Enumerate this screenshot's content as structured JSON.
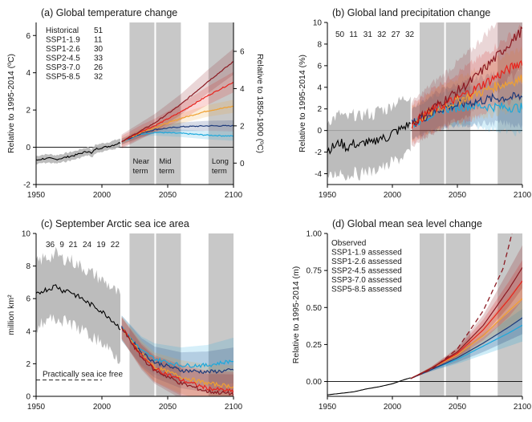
{
  "colors": {
    "historical": "#000000",
    "ssp119": "#1ba8dc",
    "ssp126": "#1d3a7a",
    "ssp245": "#f0a030",
    "ssp370": "#e8221c",
    "ssp585": "#8b1a22",
    "hist_band": "#b0b0b0",
    "period_band": "#c8c8c8"
  },
  "chart_data": [
    {
      "id": "a",
      "type": "line",
      "title": "(a) Global temperature change",
      "ylabel": "Relative to 1995-2014 (ºC)",
      "ylabel_right": "Relative to 1850-1900 (ºC)",
      "xlim": [
        1950,
        2100
      ],
      "ylim": [
        -2,
        6.7
      ],
      "xticks": [
        "1950",
        "2000",
        "2050",
        "2100"
      ],
      "yticks": [
        "-2",
        "0",
        "2",
        "4",
        "6"
      ],
      "yticks_right": [
        "0",
        "2",
        "4",
        "6"
      ],
      "right_offset": 0.85,
      "periods": [
        [
          2021,
          2040
        ],
        [
          2041,
          2060
        ],
        [
          2081,
          2100
        ]
      ],
      "period_labels": [
        [
          "Near",
          "term"
        ],
        [
          "Mid",
          "term"
        ],
        [
          "Long",
          "term"
        ]
      ],
      "zero_line": 0,
      "legend": [
        {
          "name": "Historical",
          "n": "51",
          "key": "historical"
        },
        {
          "name": "SSP1-1.9",
          "n": "11",
          "key": "ssp119"
        },
        {
          "name": "SSP1-2.6",
          "n": "30",
          "key": "ssp126"
        },
        {
          "name": "SSP2-4.5",
          "n": "33",
          "key": "ssp245"
        },
        {
          "name": "SSP3-7.0",
          "n": "26",
          "key": "ssp370"
        },
        {
          "name": "SSP5-8.5",
          "n": "32",
          "key": "ssp585"
        }
      ],
      "historical": {
        "x": [
          1950,
          1955,
          1960,
          1965,
          1970,
          1975,
          1980,
          1985,
          1990,
          1992,
          1995,
          2000,
          2005,
          2010,
          2014
        ],
        "y": [
          -0.7,
          -0.62,
          -0.6,
          -0.65,
          -0.58,
          -0.5,
          -0.42,
          -0.3,
          -0.2,
          -0.35,
          -0.1,
          -0.02,
          0.05,
          0.15,
          0.25
        ],
        "band": 0.22
      },
      "series": [
        {
          "key": "ssp119",
          "x": [
            2015,
            2030,
            2040,
            2060,
            2080,
            2100
          ],
          "y": [
            0.3,
            0.7,
            0.8,
            0.75,
            0.65,
            0.6
          ],
          "band": 0.25
        },
        {
          "key": "ssp126",
          "x": [
            2015,
            2030,
            2040,
            2060,
            2080,
            2100
          ],
          "y": [
            0.3,
            0.75,
            0.95,
            1.1,
            1.15,
            1.15
          ],
          "band": 0.3
        },
        {
          "key": "ssp245",
          "x": [
            2015,
            2030,
            2040,
            2060,
            2080,
            2100
          ],
          "y": [
            0.3,
            0.8,
            1.05,
            1.55,
            1.95,
            2.2
          ],
          "band": 0.35
        },
        {
          "key": "ssp370",
          "x": [
            2015,
            2030,
            2040,
            2060,
            2080,
            2100
          ],
          "y": [
            0.3,
            0.85,
            1.15,
            1.9,
            2.75,
            3.5
          ],
          "band": 0.55
        },
        {
          "key": "ssp585",
          "x": [
            2015,
            2030,
            2040,
            2060,
            2080,
            2100
          ],
          "y": [
            0.3,
            0.9,
            1.3,
            2.3,
            3.5,
            4.6
          ],
          "band": 0.7
        }
      ]
    },
    {
      "id": "b",
      "type": "line",
      "title": "(b) Global land precipitation change",
      "ylabel": "Relative to 1995-2014 (%)",
      "xlim": [
        1950,
        2100
      ],
      "ylim": [
        -5,
        10
      ],
      "xticks": [
        "1950",
        "2000",
        "2050",
        "2100"
      ],
      "yticks": [
        "-4",
        "-2",
        "0",
        "2",
        "4",
        "6",
        "8",
        "10"
      ],
      "periods": [
        [
          2021,
          2040
        ],
        [
          2041,
          2060
        ],
        [
          2081,
          2100
        ]
      ],
      "zero_line": 0,
      "counts": [
        {
          "n": "50",
          "key": "historical"
        },
        {
          "n": "11",
          "key": "ssp119"
        },
        {
          "n": "31",
          "key": "ssp126"
        },
        {
          "n": "32",
          "key": "ssp245"
        },
        {
          "n": "27",
          "key": "ssp370"
        },
        {
          "n": "32",
          "key": "ssp585"
        }
      ],
      "historical": {
        "x": [
          1950,
          1955,
          1960,
          1965,
          1970,
          1975,
          1980,
          1985,
          1990,
          1995,
          2000,
          2005,
          2010,
          2014
        ],
        "y": [
          -1.8,
          -1.5,
          -1.1,
          -1.6,
          -1.2,
          -1.4,
          -1.0,
          -1.3,
          -0.6,
          -0.8,
          -0.2,
          0.0,
          0.4,
          0.6
        ],
        "band": 2.6
      },
      "series": [
        {
          "key": "ssp119",
          "x": [
            2015,
            2030,
            2040,
            2060,
            2080,
            2100
          ],
          "y": [
            0.6,
            1.5,
            2.0,
            2.3,
            2.2,
            2.1
          ],
          "band": 2.4
        },
        {
          "key": "ssp126",
          "x": [
            2015,
            2030,
            2040,
            2060,
            2080,
            2100
          ],
          "y": [
            0.6,
            1.6,
            2.1,
            2.6,
            3.0,
            3.1
          ],
          "band": 2.6
        },
        {
          "key": "ssp245",
          "x": [
            2015,
            2030,
            2040,
            2060,
            2080,
            2100
          ],
          "y": [
            0.6,
            1.7,
            2.3,
            3.2,
            4.1,
            4.8
          ],
          "band": 2.8
        },
        {
          "key": "ssp370",
          "x": [
            2015,
            2030,
            2040,
            2060,
            2080,
            2100
          ],
          "y": [
            0.6,
            1.8,
            2.4,
            3.6,
            5.0,
            6.4
          ],
          "band": 3.2
        },
        {
          "key": "ssp585",
          "x": [
            2015,
            2030,
            2040,
            2060,
            2080,
            2100
          ],
          "y": [
            0.6,
            2.0,
            2.8,
            4.5,
            6.8,
            9.3
          ],
          "band": 3.6
        }
      ]
    },
    {
      "id": "c",
      "type": "line",
      "title": "(c) September Arctic sea ice area",
      "ylabel": "million km²",
      "xlim": [
        1950,
        2100
      ],
      "ylim": [
        0,
        10
      ],
      "xticks": [
        "1950",
        "2000",
        "2050",
        "2100"
      ],
      "yticks": [
        "0",
        "2",
        "4",
        "6",
        "8",
        "10"
      ],
      "periods": [
        [
          2021,
          2040
        ],
        [
          2041,
          2060
        ],
        [
          2081,
          2100
        ]
      ],
      "threshold": {
        "value": 1,
        "label": "Practically sea ice free"
      },
      "counts": [
        {
          "n": "36",
          "key": "historical"
        },
        {
          "n": "9",
          "key": "ssp119"
        },
        {
          "n": "21",
          "key": "ssp126"
        },
        {
          "n": "24",
          "key": "ssp245"
        },
        {
          "n": "19",
          "key": "ssp370"
        },
        {
          "n": "22",
          "key": "ssp585"
        }
      ],
      "historical": {
        "x": [
          1950,
          1955,
          1960,
          1965,
          1970,
          1975,
          1980,
          1985,
          1990,
          1995,
          2000,
          2005,
          2010,
          2014
        ],
        "y": [
          6.2,
          6.5,
          6.6,
          6.8,
          6.5,
          6.5,
          6.2,
          6.0,
          5.7,
          5.5,
          5.2,
          4.9,
          4.5,
          4.2
        ],
        "band": 1.9
      },
      "series": [
        {
          "key": "ssp119",
          "x": [
            2015,
            2030,
            2040,
            2060,
            2080,
            2100
          ],
          "y": [
            4.2,
            2.8,
            2.3,
            1.9,
            1.9,
            2.2
          ],
          "band": 1.4
        },
        {
          "key": "ssp126",
          "x": [
            2015,
            2030,
            2040,
            2060,
            2080,
            2100
          ],
          "y": [
            4.2,
            2.7,
            2.1,
            1.6,
            1.5,
            1.6
          ],
          "band": 1.4
        },
        {
          "key": "ssp245",
          "x": [
            2015,
            2030,
            2040,
            2060,
            2080,
            2100
          ],
          "y": [
            4.2,
            2.6,
            1.8,
            1.2,
            0.8,
            0.6
          ],
          "band": 1.3
        },
        {
          "key": "ssp370",
          "x": [
            2015,
            2030,
            2040,
            2060,
            2080,
            2100
          ],
          "y": [
            4.2,
            2.5,
            1.7,
            1.0,
            0.5,
            0.3
          ],
          "band": 1.2
        },
        {
          "key": "ssp585",
          "x": [
            2015,
            2030,
            2040,
            2060,
            2080,
            2100
          ],
          "y": [
            4.2,
            2.4,
            1.6,
            0.8,
            0.3,
            0.15
          ],
          "band": 1.2
        }
      ]
    },
    {
      "id": "d",
      "type": "line",
      "title": "(d) Global mean sea level change",
      "ylabel": "Relative to 1995-2014 (m)",
      "xlim": [
        1950,
        2100
      ],
      "ylim": [
        -0.1,
        1.0
      ],
      "xticks": [
        "1950",
        "2000",
        "2050",
        "2100"
      ],
      "yticks": [
        "0.00",
        "0.25",
        "0.50",
        "0.75",
        "1.00"
      ],
      "periods": [
        [
          2021,
          2040
        ],
        [
          2041,
          2060
        ],
        [
          2081,
          2100
        ]
      ],
      "zero_line": 0,
      "legend": [
        {
          "name": "Observed",
          "key": "historical"
        },
        {
          "name": "SSP1-1.9 assessed",
          "key": "ssp119"
        },
        {
          "name": "SSP1-2.6 assessed",
          "key": "ssp126"
        },
        {
          "name": "SSP2-4.5 assessed",
          "key": "ssp245"
        },
        {
          "name": "SSP3-7.0 assessed",
          "key": "ssp370"
        },
        {
          "name": "SSP5-8.5 assessed",
          "key": "ssp585"
        }
      ],
      "historical": {
        "x": [
          1950,
          1960,
          1970,
          1980,
          1990,
          2000,
          2005,
          2010,
          2014
        ],
        "y": [
          -0.09,
          -0.08,
          -0.07,
          -0.05,
          -0.035,
          -0.015,
          0.0,
          0.015,
          0.025
        ]
      },
      "low_likelihood": {
        "key": "ssp585",
        "x": [
          2014,
          2030,
          2050,
          2070,
          2085,
          2092
        ],
        "y": [
          0.02,
          0.08,
          0.22,
          0.48,
          0.76,
          1.0
        ]
      },
      "series": [
        {
          "key": "ssp119",
          "x": [
            2014,
            2030,
            2050,
            2070,
            2090,
            2100
          ],
          "y": [
            0.02,
            0.08,
            0.15,
            0.24,
            0.33,
            0.38
          ],
          "lo": [
            0.02,
            0.07,
            0.12,
            0.18,
            0.24,
            0.27
          ],
          "hi": [
            0.02,
            0.09,
            0.18,
            0.3,
            0.43,
            0.49
          ]
        },
        {
          "key": "ssp126",
          "x": [
            2014,
            2030,
            2050,
            2070,
            2090,
            2100
          ],
          "y": [
            0.02,
            0.08,
            0.16,
            0.26,
            0.37,
            0.43
          ],
          "lo": [
            0.02,
            0.07,
            0.13,
            0.2,
            0.28,
            0.32
          ],
          "hi": [
            0.02,
            0.09,
            0.19,
            0.32,
            0.47,
            0.55
          ]
        },
        {
          "key": "ssp245",
          "x": [
            2014,
            2030,
            2050,
            2070,
            2090,
            2100
          ],
          "y": [
            0.02,
            0.09,
            0.18,
            0.31,
            0.48,
            0.56
          ],
          "lo": [
            0.02,
            0.08,
            0.15,
            0.25,
            0.37,
            0.44
          ],
          "hi": [
            0.02,
            0.1,
            0.21,
            0.37,
            0.58,
            0.68
          ]
        },
        {
          "key": "ssp370",
          "x": [
            2014,
            2030,
            2050,
            2070,
            2090,
            2100
          ],
          "y": [
            0.02,
            0.09,
            0.19,
            0.35,
            0.56,
            0.68
          ],
          "lo": [
            0.02,
            0.08,
            0.16,
            0.28,
            0.44,
            0.55
          ],
          "hi": [
            0.02,
            0.1,
            0.22,
            0.42,
            0.68,
            0.82
          ]
        },
        {
          "key": "ssp585",
          "x": [
            2014,
            2030,
            2050,
            2070,
            2090,
            2100
          ],
          "y": [
            0.02,
            0.09,
            0.2,
            0.38,
            0.63,
            0.77
          ],
          "lo": [
            0.02,
            0.08,
            0.17,
            0.31,
            0.51,
            0.63
          ],
          "hi": [
            0.02,
            0.1,
            0.23,
            0.45,
            0.76,
            0.92
          ]
        }
      ]
    }
  ]
}
